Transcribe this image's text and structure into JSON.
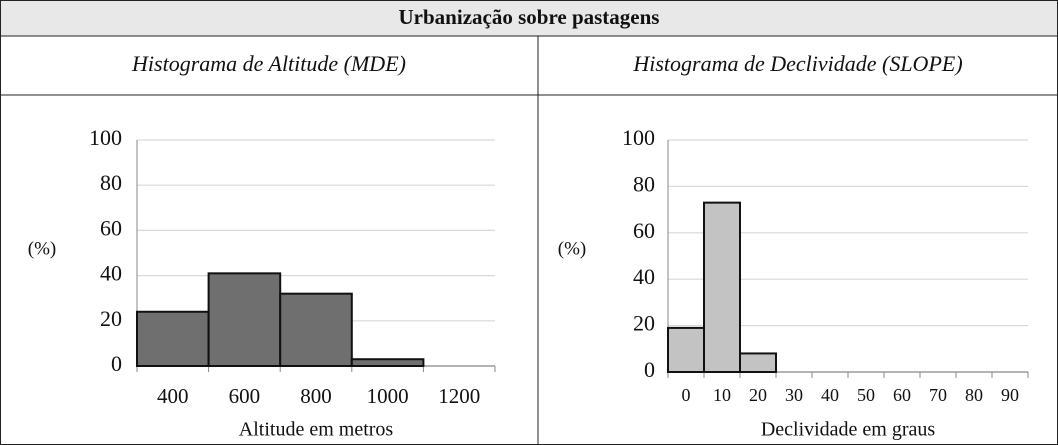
{
  "title": "Urbanização sobre pastagens",
  "chart_data": [
    {
      "type": "bar",
      "title": "Histograma de Altitude (MDE)",
      "x_label": "Altitude em metros",
      "y_label": "(%)",
      "categories": [
        "400",
        "600",
        "800",
        "1000",
        "1200"
      ],
      "values": [
        24,
        41,
        32,
        3,
        0
      ],
      "color": "#6f6f6f",
      "ylim": [
        0,
        100
      ],
      "yticks": [
        0,
        20,
        40,
        60,
        80,
        100
      ],
      "grid": true
    },
    {
      "type": "bar",
      "title": "Histograma de Declividade (SLOPE)",
      "x_label": "Declividade em graus",
      "y_label": "(%)",
      "categories": [
        "0",
        "10",
        "20",
        "30",
        "40",
        "50",
        "60",
        "70",
        "80",
        "90"
      ],
      "values": [
        19,
        73,
        8,
        0,
        0,
        0,
        0,
        0,
        0,
        0
      ],
      "color": "#c3c3c3",
      "ylim": [
        0,
        100
      ],
      "yticks": [
        0,
        20,
        40,
        60,
        80,
        100
      ],
      "grid": true
    }
  ]
}
